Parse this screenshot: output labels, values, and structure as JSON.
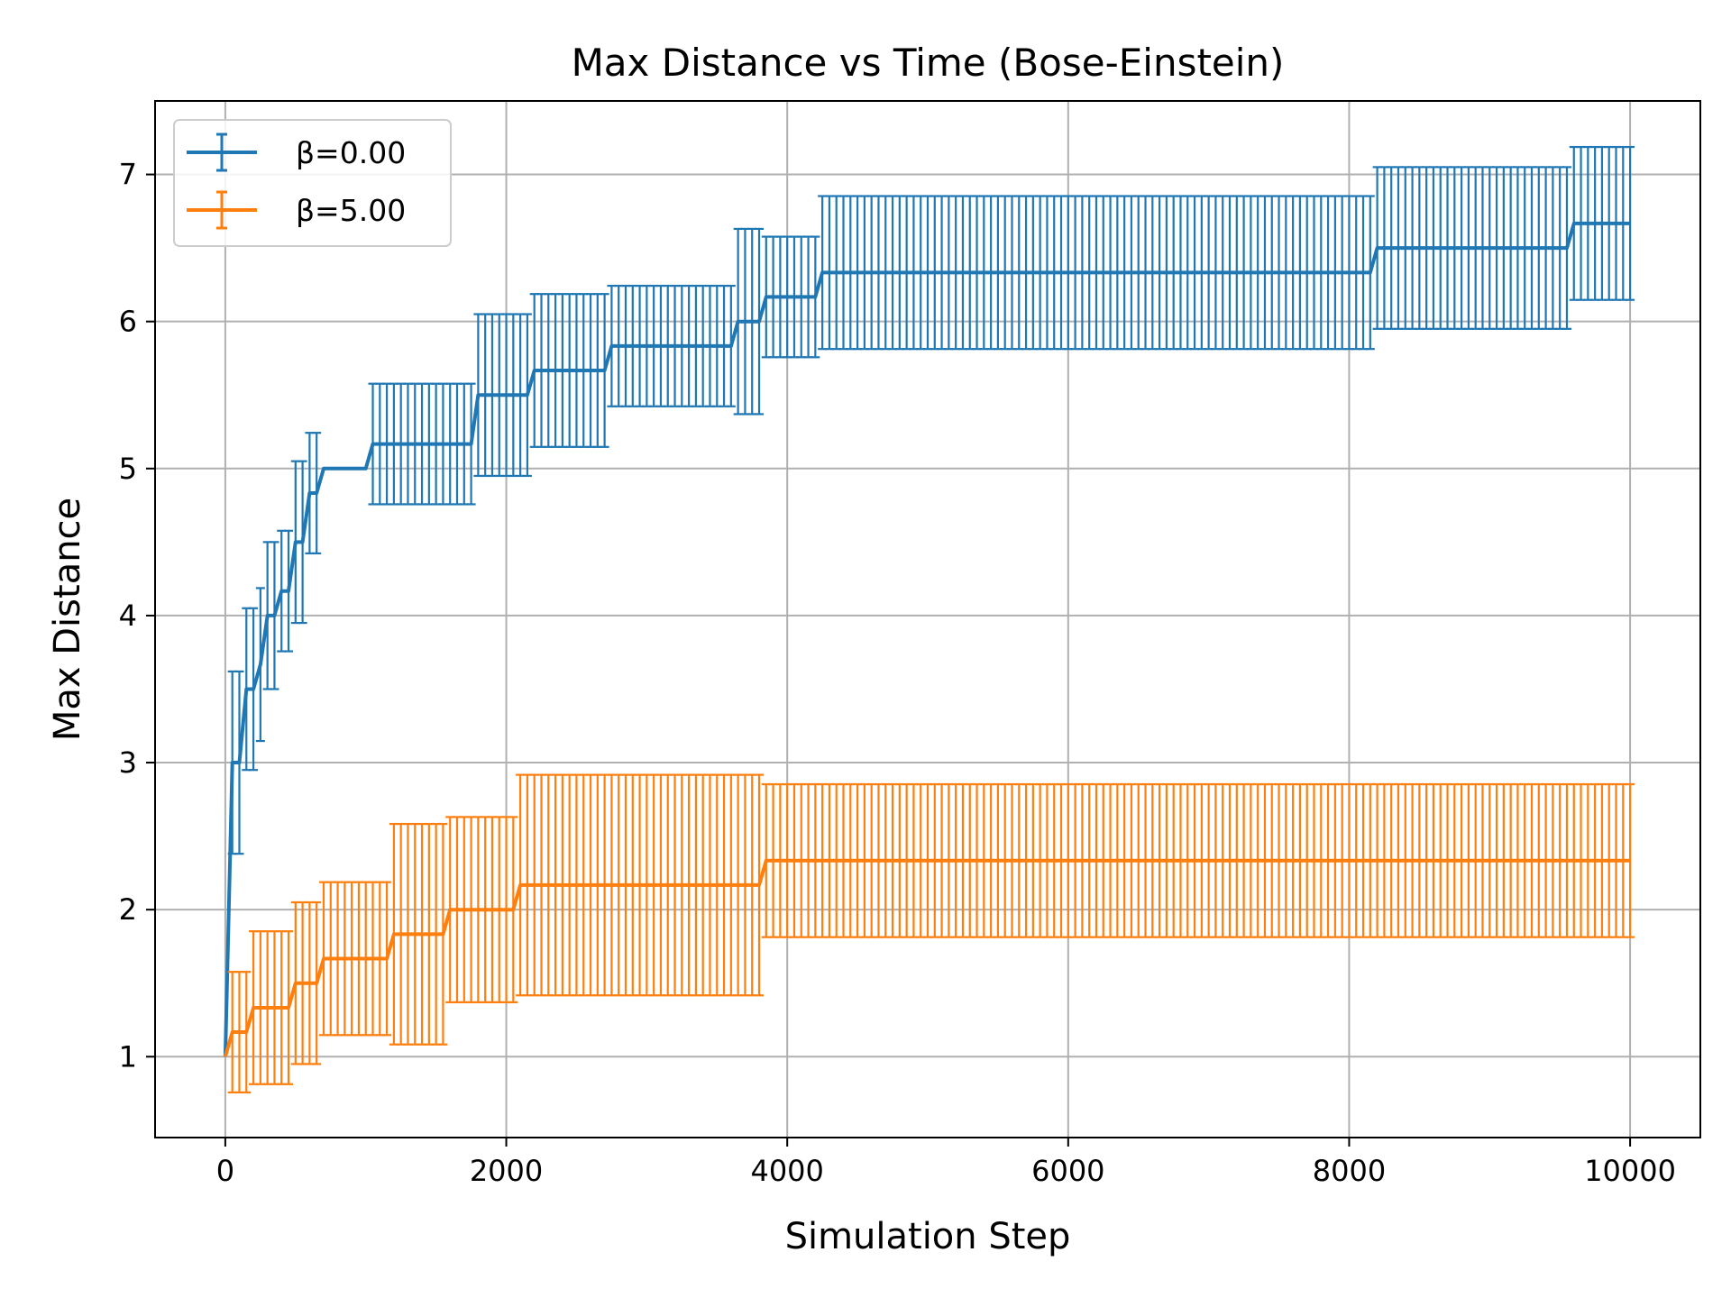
{
  "chart_data": {
    "type": "line",
    "title": "Max Distance vs Time (Bose-Einstein)",
    "xlabel": "Simulation Step",
    "ylabel": "Max Distance",
    "xlim": [
      -500,
      10500
    ],
    "ylim": [
      0.45,
      7.5
    ],
    "xticks": [
      0,
      2000,
      4000,
      6000,
      8000,
      10000
    ],
    "yticks": [
      1,
      2,
      3,
      4,
      5,
      6,
      7
    ],
    "grid": true,
    "legend_position": "top-left",
    "error_bars": true,
    "series": [
      {
        "name": "β=0.00",
        "color": "#1f77b4",
        "x_start": 0,
        "x_step": 50,
        "steps": [
          {
            "from": 0,
            "y": 1.0,
            "err": 0.0
          },
          {
            "from": 50,
            "y": 3.0,
            "err": 0.62
          },
          {
            "from": 150,
            "y": 3.5,
            "err": 0.55
          },
          {
            "from": 250,
            "y": 3.667,
            "err": 0.52
          },
          {
            "from": 300,
            "y": 4.0,
            "err": 0.5
          },
          {
            "from": 400,
            "y": 4.167,
            "err": 0.41
          },
          {
            "from": 500,
            "y": 4.5,
            "err": 0.55
          },
          {
            "from": 600,
            "y": 4.833,
            "err": 0.41
          },
          {
            "from": 700,
            "y": 5.0,
            "err": 0.0
          },
          {
            "from": 1050,
            "y": 5.167,
            "err": 0.41
          },
          {
            "from": 1800,
            "y": 5.5,
            "err": 0.55
          },
          {
            "from": 2200,
            "y": 5.667,
            "err": 0.52
          },
          {
            "from": 2750,
            "y": 5.833,
            "err": 0.41
          },
          {
            "from": 3650,
            "y": 6.0,
            "err": 0.63
          },
          {
            "from": 3850,
            "y": 6.167,
            "err": 0.41
          },
          {
            "from": 4250,
            "y": 6.333,
            "err": 0.52
          },
          {
            "from": 8200,
            "y": 6.5,
            "err": 0.55
          },
          {
            "from": 9600,
            "y": 6.667,
            "err": 0.52
          }
        ]
      },
      {
        "name": "β=5.00",
        "color": "#ff7f0e",
        "x_start": 0,
        "x_step": 50,
        "steps": [
          {
            "from": 0,
            "y": 1.0,
            "err": 0.0
          },
          {
            "from": 50,
            "y": 1.167,
            "err": 0.41
          },
          {
            "from": 200,
            "y": 1.333,
            "err": 0.52
          },
          {
            "from": 500,
            "y": 1.5,
            "err": 0.55
          },
          {
            "from": 700,
            "y": 1.667,
            "err": 0.52
          },
          {
            "from": 1200,
            "y": 1.833,
            "err": 0.75
          },
          {
            "from": 1600,
            "y": 2.0,
            "err": 0.63
          },
          {
            "from": 2100,
            "y": 2.167,
            "err": 0.75
          },
          {
            "from": 3850,
            "y": 2.333,
            "err": 0.52
          }
        ]
      }
    ]
  }
}
